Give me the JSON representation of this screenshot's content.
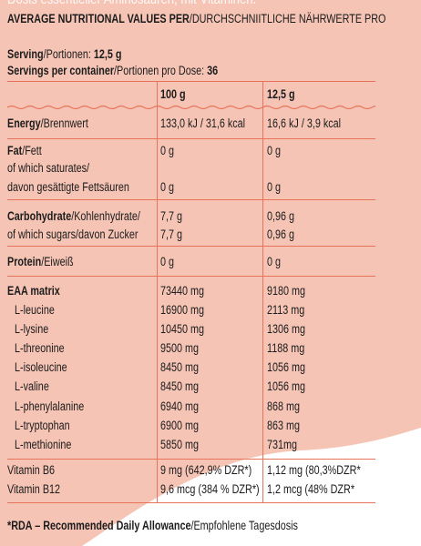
{
  "top_cut_text": "Dosis essentieller Aminosäuren, mit Vitaminen.",
  "header": {
    "bold": "AVERAGE NUTRITIONAL VALUES PER",
    "normal": "/DURCHSCHNIITLICHE NÄHRWERTE PRO"
  },
  "serving": {
    "bold": "Serving",
    "normal": "/Portionen: ",
    "value": "12,5 g"
  },
  "servings_per_container": {
    "bold": "Servings per container",
    "normal": "/Portionen pro Dose: ",
    "value": "36"
  },
  "columns": {
    "col1": "100 g",
    "col2": "12,5 g"
  },
  "rows": {
    "energy": {
      "label_bold": "Energy",
      "label_normal": "/Brennwert",
      "v100": "133,0 kJ / 31,6 kcal",
      "vserv": "16,6 kJ / 3,9 kcal"
    },
    "fat": {
      "label_bold": "Fat",
      "label_normal": "/Fett",
      "sat_line1": "of which saturates/",
      "sat_line2": "davon gesättigte Fettsäuren",
      "v100": "0 g",
      "vserv": "0 g",
      "sat_v100": "0 g",
      "sat_vserv": "0 g"
    },
    "carb": {
      "label_bold": "Carbohydrate",
      "label_normal": "/Kohlenhydrate/",
      "sugars": "of which sugars/davon Zucker",
      "v100": "7,7 g",
      "vserv": "0,96 g",
      "sugars_v100": "7,7 g",
      "sugars_vserv": "0,96 g"
    },
    "protein": {
      "label_bold": "Protein",
      "label_normal": "/Eiweiß",
      "v100": "0 g",
      "vserv": "0 g"
    },
    "eaa": {
      "label": "EAA matrix",
      "v100": "73440 mg",
      "vserv": "9180 mg"
    },
    "amino": [
      {
        "name": "L-leucine",
        "v100": "16900 mg",
        "vserv": "2113 mg"
      },
      {
        "name": "L-lysine",
        "v100": "10450 mg",
        "vserv": "1306 mg"
      },
      {
        "name": "L-threonine",
        "v100": "9500 mg",
        "vserv": "1188 mg"
      },
      {
        "name": "L-isoleucine",
        "v100": "8450 mg",
        "vserv": "1056 mg"
      },
      {
        "name": "L-valine",
        "v100": "8450 mg",
        "vserv": "1056 mg"
      },
      {
        "name": "L-phenylalanine",
        "v100": "6940 mg",
        "vserv": "868 mg"
      },
      {
        "name": "L-tryptophan",
        "v100": "6900 mg",
        "vserv": "863 mg"
      },
      {
        "name": "L-methionine",
        "v100": "5850 mg",
        "vserv": "731mg"
      }
    ],
    "b6": {
      "label": "Vitamin B6",
      "v100": "9 mg (642,9% DZR*)",
      "vserv": "1,12 mg (80,3%DZR*"
    },
    "b12": {
      "label": "Vitamin B12",
      "v100": "9,6 mcg (384 % DZR*)",
      "vserv": "1,2 mcg (48% DZR*"
    }
  },
  "footnote": {
    "bold": "*RDA – Recommended Daily Allowance",
    "normal": "/Empfohlene Tagesdosis"
  },
  "colors": {
    "background": "#f5c4b5",
    "rule": "#e8735a",
    "wave": "#ffffff"
  }
}
